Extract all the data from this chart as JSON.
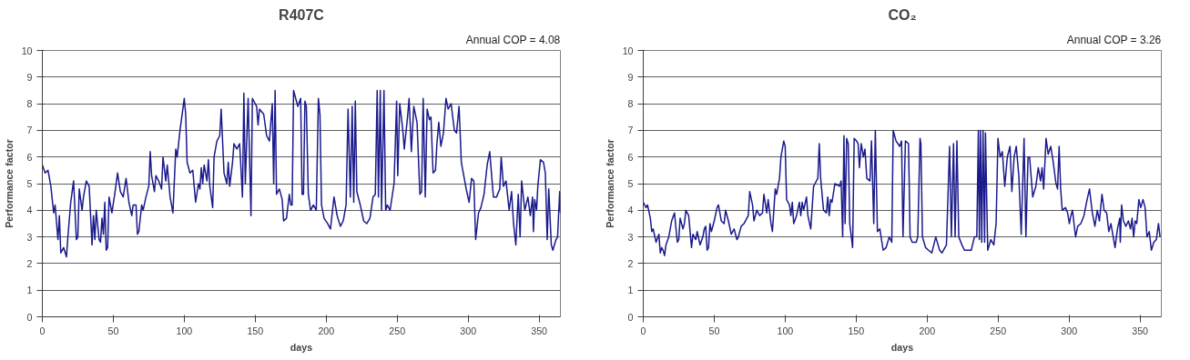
{
  "chart_data": [
    {
      "type": "line",
      "title": "R407C",
      "xlabel": "days",
      "ylabel": "Performance factor",
      "annotations": [
        "Annual COP = 4.08"
      ],
      "xlim": [
        0,
        365
      ],
      "xticks": [
        0,
        50,
        100,
        150,
        200,
        250,
        300,
        350
      ],
      "ylim": [
        0,
        10
      ],
      "yticks": [
        0,
        1,
        2,
        3,
        4,
        5,
        6,
        7,
        8,
        9,
        10
      ],
      "grid": "y",
      "marker": "none",
      "line_style": "solid",
      "series": [
        {
          "color": "#1a1a8c",
          "x": [
            0,
            2,
            4,
            6,
            8,
            9,
            11,
            12,
            13,
            15,
            17,
            18,
            20,
            21,
            22,
            24,
            25,
            26,
            28,
            29,
            31,
            33,
            35,
            36,
            37,
            38,
            40,
            41,
            42,
            43,
            44,
            45,
            46,
            47,
            49,
            51,
            53,
            55,
            57,
            59,
            61,
            63,
            64,
            66,
            67,
            68,
            70,
            71,
            73,
            75,
            76,
            77,
            79,
            80,
            82,
            84,
            85,
            87,
            88,
            90,
            92,
            94,
            95,
            97,
            99,
            100,
            101,
            102,
            104,
            106,
            108,
            110,
            111,
            112,
            113,
            114,
            116,
            117,
            118,
            120,
            121,
            123,
            125,
            126,
            128,
            130,
            131,
            132,
            134,
            135,
            137,
            139,
            141,
            142,
            143,
            145,
            147,
            148,
            151,
            152,
            153,
            156,
            158,
            160,
            162,
            163,
            164,
            165,
            167,
            169,
            170,
            172,
            174,
            175,
            176,
            177,
            180,
            182,
            183,
            184,
            185,
            186,
            187.4,
            189,
            191,
            193,
            194.5,
            195.6,
            196.7,
            198.5,
            201,
            203,
            205.5,
            207.7,
            210,
            212,
            214,
            215.4,
            217,
            218.3,
            219.4,
            220.5,
            221.6,
            224,
            226.4,
            228.6,
            230.8,
            233,
            234.6,
            235.9,
            236.8,
            238.1,
            239,
            240.7,
            241.9,
            243,
            245,
            247.8,
            249.6,
            250.4,
            251.8,
            254,
            255,
            257.3,
            258.4,
            260,
            261.7,
            264,
            266,
            267.2,
            268.3,
            269.8,
            271.1,
            272.7,
            273.8,
            275.3,
            277,
            278,
            279.3,
            280.8,
            282.6,
            284.4,
            285.9,
            288,
            290.3,
            291.8,
            293.6,
            295.2,
            296.9,
            299,
            300.7,
            302.4,
            304,
            305.3,
            307.3,
            309,
            311.2,
            313.4,
            315.2,
            317.8,
            320,
            322.3,
            323.3,
            324.9,
            326.7,
            328.9,
            330.6,
            332,
            333.6,
            335.3,
            336.6,
            337.7,
            339.9,
            342.1,
            343.8,
            345.4,
            346,
            346.9,
            348.2,
            349.1,
            350.9,
            353.1,
            354.4,
            355.7,
            356.8,
            358.6,
            359.7,
            361.9,
            363,
            364.5,
            365
          ],
          "values": [
            5.7,
            5.4,
            5.5,
            4.9,
            3.9,
            4.2,
            2.9,
            3.8,
            2.4,
            2.6,
            2.25,
            3.0,
            4.3,
            4.7,
            5.1,
            2.9,
            3.0,
            4.8,
            4.0,
            4.5,
            5.1,
            4.9,
            2.7,
            3.8,
            2.9,
            4.0,
            2.9,
            2.8,
            3.7,
            3.1,
            4.3,
            2.5,
            2.6,
            4.5,
            3.9,
            4.6,
            5.4,
            4.7,
            4.5,
            5.2,
            4.3,
            3.8,
            4.2,
            4.2,
            3.1,
            3.2,
            4.2,
            4.0,
            4.5,
            4.9,
            6.2,
            5.3,
            4.7,
            5.3,
            5.1,
            4.8,
            6.0,
            5.1,
            5.7,
            4.5,
            3.9,
            6.3,
            6.0,
            7.0,
            7.8,
            8.2,
            7.6,
            5.8,
            5.4,
            5.5,
            4.3,
            5.0,
            4.8,
            5.6,
            5.0,
            5.7,
            5.1,
            5.9,
            4.9,
            4.1,
            6.0,
            6.6,
            6.8,
            7.8,
            5.4,
            5.0,
            5.8,
            4.9,
            5.8,
            6.5,
            6.3,
            6.5,
            4.5,
            8.4,
            5.0,
            8.2,
            3.8,
            8.2,
            7.9,
            7.2,
            7.8,
            7.6,
            6.8,
            6.6,
            8.0,
            5.0,
            8.5,
            4.6,
            4.8,
            4.4,
            3.6,
            3.7,
            4.6,
            4.2,
            4.2,
            8.5,
            7.9,
            8.2,
            4.6,
            4.6,
            8.1,
            7.9,
            4.6,
            4.0,
            4.2,
            4.0,
            8.2,
            7.6,
            4.2,
            3.7,
            3.5,
            3.3,
            4.5,
            3.8,
            3.4,
            3.6,
            4.2,
            7.8,
            4.5,
            7.9,
            4.3,
            8.1,
            4.7,
            4.2,
            3.6,
            3.5,
            3.7,
            4.5,
            4.6,
            8.5,
            4.5,
            8.5,
            4.0,
            8.5,
            4.0,
            4.2,
            4.0,
            5.0,
            8.1,
            5.3,
            8.0,
            7.0,
            6.3,
            7.5,
            8.2,
            6.2,
            7.9,
            7.3,
            4.6,
            4.7,
            8.2,
            4.5,
            7.8,
            7.4,
            7.5,
            5.4,
            5.5,
            6.5,
            7.3,
            6.4,
            6.9,
            8.2,
            7.8,
            8.0,
            7.0,
            6.9,
            7.9,
            5.8,
            5.3,
            4.7,
            4.3,
            5.2,
            5.1,
            2.9,
            3.9,
            4.1,
            4.6,
            5.7,
            6.2,
            4.5,
            4.5,
            4.8,
            6.0,
            4.9,
            5.1,
            4.0,
            4.7,
            3.5,
            2.7,
            4.6,
            3.0,
            5.1,
            4.0,
            4.5,
            3.8,
            4.5,
            3.2,
            4.4,
            4.0,
            4.9,
            5.9,
            5.8,
            5.4,
            2.9,
            4.8,
            2.7,
            2.5,
            2.9,
            3.0,
            4.7,
            3.9
          ]
        }
      ]
    },
    {
      "type": "line",
      "title": "CO₂",
      "xlabel": "days",
      "ylabel": "Performance factor",
      "annotations": [
        "Annual COP = 3.26"
      ],
      "xlim": [
        0,
        365
      ],
      "xticks": [
        0,
        50,
        100,
        150,
        200,
        250,
        300,
        350
      ],
      "ylim": [
        0,
        10
      ],
      "yticks": [
        0,
        1,
        2,
        3,
        4,
        5,
        6,
        7,
        8,
        9,
        10
      ],
      "grid": "y",
      "marker": "none",
      "line_style": "solid",
      "series": [
        {
          "color": "#1a1a8c",
          "x": [
            0,
            2,
            3,
            5,
            6,
            7,
            9,
            11,
            12,
            13,
            14,
            15,
            16,
            18,
            20,
            22,
            24,
            25,
            26,
            28,
            29,
            30,
            32,
            34,
            35,
            37,
            38,
            40,
            42,
            43,
            44,
            45,
            46,
            47,
            48,
            50,
            52,
            53,
            55,
            57,
            58,
            60,
            62,
            64,
            66,
            67,
            69,
            71,
            74,
            75,
            77,
            78,
            80,
            82,
            84,
            85,
            87,
            88,
            90,
            91,
            93,
            94,
            96,
            97,
            99,
            100,
            101,
            103,
            104,
            105,
            106,
            108,
            110,
            111,
            112,
            113,
            115,
            116,
            118,
            120,
            121,
            123,
            124,
            125,
            127,
            129,
            130,
            131,
            132,
            133,
            135,
            138.3,
            139.4,
            140.5,
            141.4,
            142.2,
            143.3,
            144.4,
            145.5,
            146.6,
            147.5,
            148.6,
            150.3,
            151.4,
            152.3,
            153.6,
            155.1,
            156.2,
            157.5,
            159.7,
            160.8,
            162.4,
            163.5,
            165,
            166.7,
            169,
            171.1,
            173.3,
            175.1,
            176.1,
            178.1,
            179.4,
            180.7,
            182,
            183,
            184.7,
            186.9,
            188,
            189.5,
            192.3,
            193.4,
            195,
            195.6,
            196.7,
            198.9,
            201,
            203.3,
            206.1,
            208.8,
            210.5,
            213.6,
            215.8,
            217.1,
            218.6,
            219.7,
            221,
            222.3,
            224.5,
            226.3,
            231.1,
            233.3,
            235,
            236.1,
            236.8,
            237.6,
            238.5,
            239.4,
            240.5,
            241.1,
            242.7,
            244.9,
            247,
            248.6,
            249.9,
            251.4,
            253,
            254.7,
            256.5,
            258.4,
            259.7,
            261.3,
            262.8,
            264.6,
            266.3,
            268.3,
            269.6,
            271.1,
            272.2,
            274.4,
            276.6,
            278.3,
            279.9,
            281,
            282.1,
            283.8,
            285.3,
            287.1,
            288.6,
            290.8,
            291.9,
            293,
            294.1,
            295.2,
            297.5,
            299,
            300.2,
            301.3,
            302.4,
            304.6,
            306.1,
            308.3,
            310.5,
            312.7,
            314.4,
            316.4,
            318.2,
            319.9,
            321.4,
            323.2,
            324.7,
            326.5,
            328,
            329.5,
            332.4,
            334.1,
            335.7,
            336.1,
            337,
            338.3,
            340,
            341.8,
            343.3,
            344.4,
            345.5,
            346.6,
            347.7,
            349.2,
            350.5,
            352.1,
            353.6,
            354.9,
            356.5,
            358,
            359.7,
            361.5,
            363,
            364.1
          ],
          "values": [
            4.3,
            4.1,
            4.2,
            3.7,
            3.2,
            3.3,
            2.8,
            3.1,
            2.4,
            2.6,
            2.5,
            2.3,
            2.7,
            3.0,
            3.6,
            3.9,
            2.8,
            2.9,
            3.7,
            3.3,
            3.5,
            4.0,
            3.8,
            2.6,
            3.1,
            2.9,
            3.2,
            2.7,
            3.0,
            3.3,
            3.4,
            2.5,
            2.6,
            3.5,
            3.2,
            3.6,
            4.1,
            4.2,
            3.6,
            3.5,
            4.0,
            3.6,
            3.1,
            3.3,
            2.9,
            3.0,
            3.4,
            3.5,
            3.8,
            4.7,
            4.2,
            3.6,
            4.0,
            3.8,
            3.9,
            4.6,
            3.9,
            4.4,
            3.5,
            3.2,
            4.8,
            4.6,
            5.2,
            6.0,
            6.6,
            6.4,
            4.4,
            4.2,
            3.8,
            4.3,
            3.5,
            3.8,
            4.3,
            3.8,
            4.3,
            4.0,
            4.5,
            3.8,
            3.3,
            4.9,
            5.0,
            5.2,
            6.5,
            5.2,
            4.0,
            3.9,
            4.5,
            3.8,
            4.4,
            4.3,
            5.0,
            4.9,
            5.1,
            3.0,
            6.8,
            3.5,
            6.7,
            6.5,
            3.5,
            3.0,
            2.6,
            6.7,
            6.6,
            6.5,
            5.6,
            6.5,
            6.0,
            6.3,
            5.2,
            5.1,
            6.6,
            3.5,
            7.0,
            3.2,
            3.3,
            2.5,
            2.6,
            3.0,
            2.8,
            7.0,
            6.6,
            6.5,
            6.4,
            6.6,
            3.0,
            6.6,
            6.5,
            3.0,
            2.8,
            2.8,
            3.0,
            6.7,
            6.5,
            3.0,
            2.6,
            2.5,
            2.4,
            3.0,
            2.5,
            2.4,
            2.7,
            6.4,
            3.0,
            6.5,
            3.0,
            6.6,
            3.0,
            2.7,
            2.5,
            2.5,
            3.0,
            3.0,
            7.0,
            2.9,
            7.0,
            2.8,
            7.0,
            2.8,
            6.9,
            2.5,
            2.9,
            2.7,
            3.5,
            6.7,
            6.0,
            6.2,
            4.9,
            6.0,
            6.4,
            4.7,
            6.0,
            6.4,
            5.3,
            3.1,
            6.7,
            3.0,
            6.0,
            6.0,
            4.5,
            4.9,
            5.6,
            5.1,
            5.6,
            4.8,
            6.7,
            6.1,
            6.4,
            5.9,
            5.0,
            4.8,
            6.4,
            4.8,
            4.0,
            4.1,
            3.9,
            3.5,
            3.8,
            4.0,
            3.0,
            3.4,
            3.5,
            3.8,
            4.4,
            4.8,
            3.9,
            3.4,
            4.0,
            3.6,
            4.6,
            4.0,
            3.9,
            3.2,
            3.5,
            2.6,
            3.3,
            3.7,
            2.8,
            4.2,
            3.6,
            3.4,
            3.6,
            3.3,
            3.7,
            3.0,
            3.6,
            3.5,
            4.4,
            4.1,
            4.4,
            4.1,
            3.0,
            3.2,
            2.5,
            2.8,
            2.9,
            3.5,
            3.0
          ]
        }
      ]
    }
  ]
}
